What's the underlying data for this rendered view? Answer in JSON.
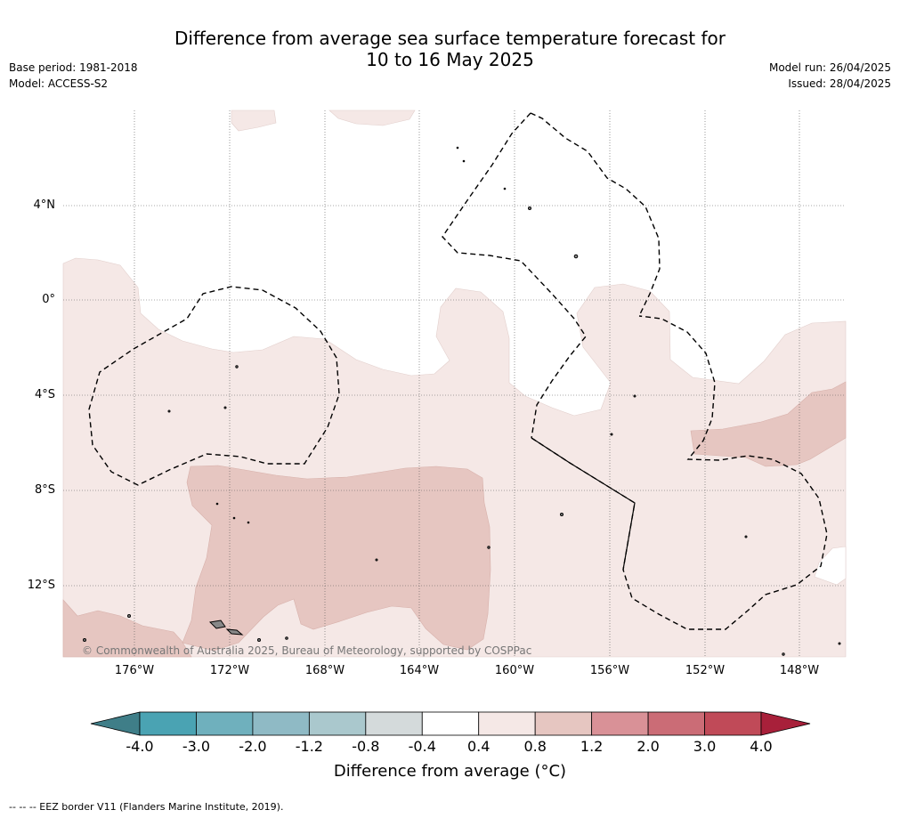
{
  "header": {
    "title_line1": "Difference from average sea surface temperature forecast for",
    "title_line2": "10 to 16 May 2025",
    "base_period": "Base period: 1981-2018",
    "model": "Model: ACCESS-S2",
    "model_run": "Model run: 26/04/2025",
    "issued": "Issued: 28/04/2025"
  },
  "map": {
    "lat_labels": [
      "4°N",
      "0°",
      "4°S",
      "8°S",
      "12°S"
    ],
    "lon_labels": [
      "176°W",
      "172°W",
      "168°W",
      "164°W",
      "160°W",
      "156°W",
      "152°W",
      "148°W"
    ],
    "copyright": "© Commonwealth of Australia 2025, Bureau of Meteorology, supported by COSPPac",
    "colors": {
      "weak_warm": "#f5e8e6",
      "moderate_warm": "#e6c6c1",
      "land": "#a0a0a0"
    }
  },
  "colorbar": {
    "ticks": [
      "-4.0",
      "-3.0",
      "-2.0",
      "-1.2",
      "-0.8",
      "-0.4",
      "0.4",
      "0.8",
      "1.2",
      "2.0",
      "3.0",
      "4.0"
    ],
    "colors": [
      "#3f7e88",
      "#4aa3b3",
      "#6fb0bd",
      "#8fbac5",
      "#aac8cd",
      "#d4dadb",
      "#ffffff",
      "#f5e8e6",
      "#e6c6c1",
      "#d99197",
      "#cb6c76",
      "#c04a58",
      "#a8203a"
    ],
    "title": "Difference from average (°C)"
  },
  "footer": {
    "eez_legend": "--  --  -- EEZ border V11 (Flanders Marine Institute, 2019)."
  }
}
